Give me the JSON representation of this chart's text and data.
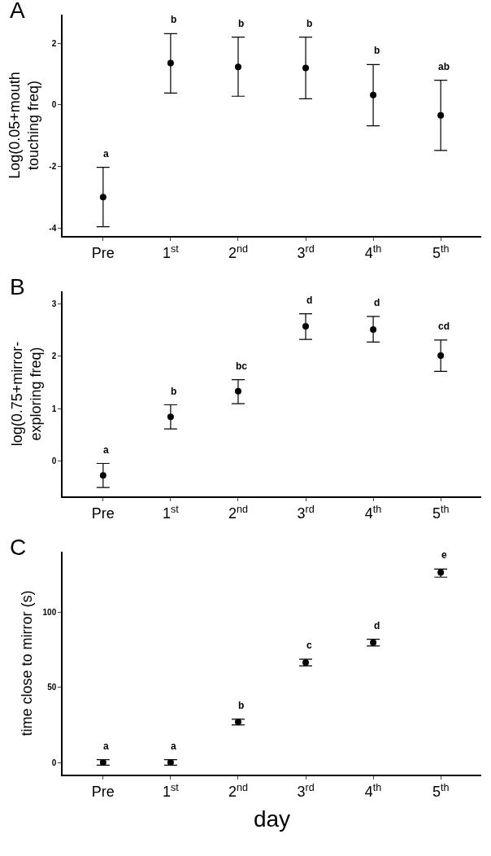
{
  "chart_data": [
    {
      "type": "scatter",
      "title": "A",
      "ylabel": "Log(0.05+mouth\ntouching freq)",
      "categories": [
        "Pre",
        "1$^{st}$",
        "2$^{nd}$",
        "3$^{rd}$",
        "4$^{th}$",
        "5$^{th}$"
      ],
      "series": [
        {
          "color": "#000000",
          "values": [
            -3.0,
            1.36,
            1.23,
            1.2,
            0.32,
            -0.34
          ],
          "errors": [
            [
              -3.96,
              -2.03
            ],
            [
              0.38,
              2.31
            ],
            [
              0.28,
              2.2
            ],
            [
              0.2,
              2.2
            ],
            [
              -0.68,
              1.31
            ],
            [
              -1.48,
              0.8
            ]
          ]
        }
      ],
      "ylim": [
        -4.26,
        2.93
      ],
      "yticks": [
        -4,
        -2,
        0,
        2
      ],
      "grid": false,
      "marker": "circle",
      "annotations": [
        {
          "text": "a",
          "x": "Pre",
          "y": -2.03
        },
        {
          "text": "b",
          "x": "1$^{st}$",
          "y": 2.31
        },
        {
          "text": "b",
          "x": "2$^{nd}$",
          "y": 2.2
        },
        {
          "text": "b",
          "x": "3$^{rd}$",
          "y": 2.2
        },
        {
          "text": "b",
          "x": "4$^{th}$",
          "y": 1.31
        },
        {
          "text": "ab",
          "x": "5$^{th}$",
          "y": 0.8
        }
      ]
    },
    {
      "type": "scatter",
      "title": "B",
      "ylabel": "log(0.75+mirror-\nexploring freq)",
      "categories": [
        "Pre",
        "1$^{st}$",
        "2$^{nd}$",
        "3$^{rd}$",
        "4$^{th}$",
        "5$^{th}$"
      ],
      "series": [
        {
          "color": "#000000",
          "values": [
            -0.28,
            0.84,
            1.33,
            2.57,
            2.51,
            2.01
          ],
          "errors": [
            [
              -0.51,
              -0.05
            ],
            [
              0.61,
              1.07
            ],
            [
              1.09,
              1.55
            ],
            [
              2.32,
              2.81
            ],
            [
              2.27,
              2.76
            ],
            [
              1.71,
              2.31
            ]
          ]
        }
      ],
      "ylim": [
        -0.68,
        3.24
      ],
      "yticks": [
        0,
        1,
        2,
        3
      ],
      "grid": false,
      "marker": "circle",
      "annotations": [
        {
          "text": "a",
          "x": "Pre",
          "y": -0.05
        },
        {
          "text": "b",
          "x": "1$^{st}$",
          "y": 1.07
        },
        {
          "text": "bc",
          "x": "2$^{nd}$",
          "y": 1.55
        },
        {
          "text": "d",
          "x": "3$^{rd}$",
          "y": 2.81
        },
        {
          "text": "d",
          "x": "4$^{th}$",
          "y": 2.76
        },
        {
          "text": "cd",
          "x": "5$^{th}$",
          "y": 2.31
        }
      ]
    },
    {
      "type": "scatter",
      "title": "C",
      "xlabel": "day",
      "ylabel": "time close to mirror (s)",
      "categories": [
        "Pre",
        "1$^{st}$",
        "2$^{nd}$",
        "3$^{rd}$",
        "4$^{th}$",
        "5$^{th}$"
      ],
      "series": [
        {
          "color": "#000000",
          "values": [
            0,
            0,
            26.9,
            66.4,
            79.6,
            126.3
          ],
          "errors": [
            [
              -1.8,
              1.8
            ],
            [
              -1.8,
              1.8
            ],
            [
              25,
              28.7
            ],
            [
              64.2,
              68.6
            ],
            [
              77.4,
              81.9
            ],
            [
              123.2,
              128.5
            ]
          ]
        }
      ],
      "ylim": [
        -8.1,
        140.1
      ],
      "yticks": [
        0,
        50,
        100
      ],
      "grid": false,
      "marker": "circle",
      "annotations": [
        {
          "text": "a",
          "x": "Pre",
          "y": 1.8
        },
        {
          "text": "a",
          "x": "1$^{st}$",
          "y": 1.8
        },
        {
          "text": "b",
          "x": "2$^{nd}$",
          "y": 28.7
        },
        {
          "text": "c",
          "x": "3$^{rd}$",
          "y": 68.6
        },
        {
          "text": "d",
          "x": "4$^{th}$",
          "y": 81.9
        },
        {
          "text": "e",
          "x": "5$^{th}$",
          "y": 128.5
        }
      ]
    }
  ]
}
